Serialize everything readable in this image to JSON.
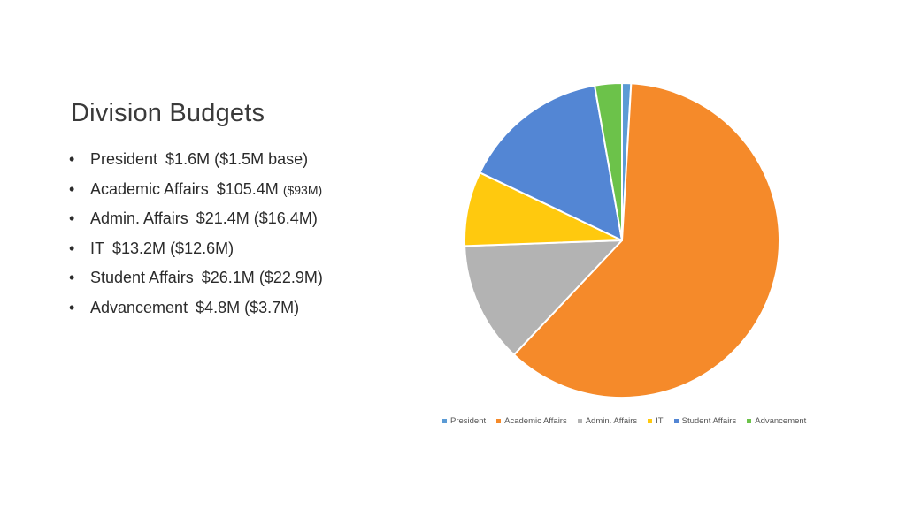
{
  "slide": {
    "title": "Division Budgets"
  },
  "bullets": [
    {
      "name": "President",
      "value": "$1.6M",
      "base": "($1.5M base)",
      "base_small": false
    },
    {
      "name": "Academic Affairs",
      "value": "$105.4M",
      "base": "($93M)",
      "base_small": true
    },
    {
      "name": "Admin. Affairs",
      "value": "$21.4M",
      "base": "($16.4M)",
      "base_small": false
    },
    {
      "name": "IT",
      "value": "$13.2M",
      "base": "($12.6M)",
      "base_small": false
    },
    {
      "name": "Student Affairs",
      "value": "$26.1M",
      "base": "($22.9M)",
      "base_small": false
    },
    {
      "name": "Advancement",
      "value": "$4.8M",
      "base": "($3.7M)",
      "base_small": false
    }
  ],
  "bullet_glyph": "•",
  "chart_data": {
    "type": "pie",
    "title": "",
    "legend_position": "bottom",
    "slices": [
      {
        "name": "President",
        "value": 1.6,
        "color": "#5B9BD5"
      },
      {
        "name": "Academic Affairs",
        "value": 105.4,
        "color": "#F58A2A"
      },
      {
        "name": "Admin. Affairs",
        "value": 21.4,
        "color": "#B3B3B3"
      },
      {
        "name": "IT",
        "value": 13.2,
        "color": "#FFC90E"
      },
      {
        "name": "Student Affairs",
        "value": 26.1,
        "color": "#5386D4"
      },
      {
        "name": "Advancement",
        "value": 4.8,
        "color": "#6CC24A"
      }
    ]
  }
}
